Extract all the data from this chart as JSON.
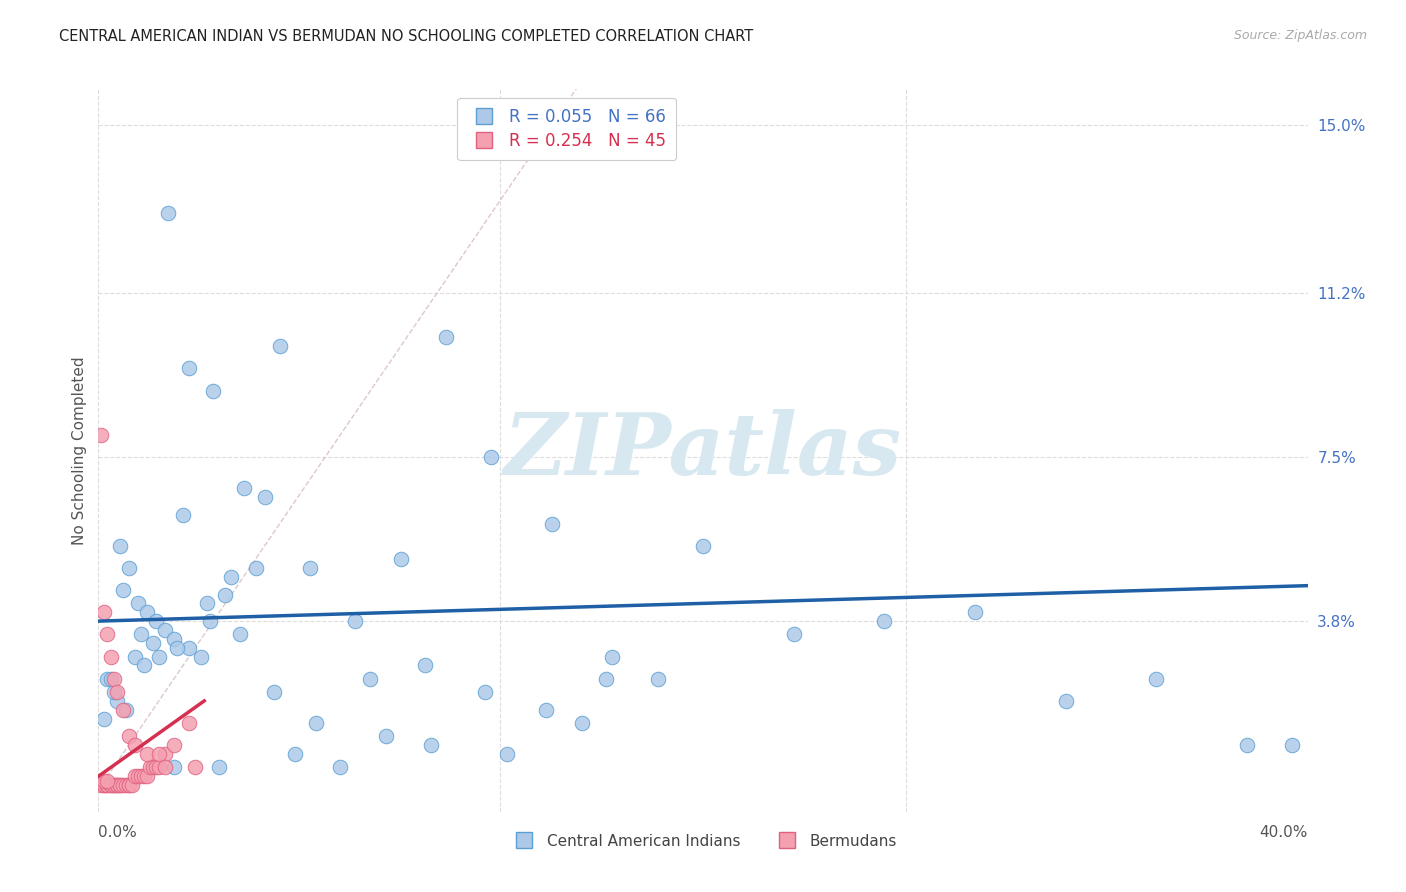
{
  "title": "CENTRAL AMERICAN INDIAN VS BERMUDAN NO SCHOOLING COMPLETED CORRELATION CHART",
  "source": "Source: ZipAtlas.com",
  "ylabel": "No Schooling Completed",
  "yticks_labels": [
    "15.0%",
    "11.2%",
    "7.5%",
    "3.8%"
  ],
  "ytick_vals": [
    0.15,
    0.112,
    0.075,
    0.038
  ],
  "xrange": [
    0.0,
    0.4
  ],
  "yrange": [
    -0.005,
    0.158
  ],
  "watermark_text": "ZIPatlas",
  "legend1_label": "Central American Indians",
  "legend2_label": "Bermudans",
  "R1": "R = 0.055",
  "N1": "N = 66",
  "R2": "R = 0.254",
  "N2": "N = 45",
  "color_blue_face": "#aec9e8",
  "color_blue_edge": "#5a9fd4",
  "color_pink_face": "#f4a0b0",
  "color_pink_edge": "#e06080",
  "trend_blue_color": "#1f5fa6",
  "trend_pink_color": "#d63050",
  "diag_color": "#d0b0b0",
  "grid_color": "#dddddd",
  "legend_blue_text": "#4472c4",
  "legend_pink_text": "#d63050",
  "blue_x": [
    0.023,
    0.03,
    0.038,
    0.048,
    0.06,
    0.007,
    0.01,
    0.013,
    0.016,
    0.019,
    0.022,
    0.025,
    0.03,
    0.036,
    0.044,
    0.052,
    0.003,
    0.006,
    0.009,
    0.012,
    0.018,
    0.026,
    0.034,
    0.042,
    0.055,
    0.07,
    0.085,
    0.1,
    0.115,
    0.13,
    0.15,
    0.17,
    0.2,
    0.23,
    0.26,
    0.29,
    0.32,
    0.35,
    0.38,
    0.395,
    0.005,
    0.008,
    0.014,
    0.02,
    0.028,
    0.037,
    0.047,
    0.058,
    0.072,
    0.09,
    0.108,
    0.128,
    0.148,
    0.168,
    0.002,
    0.004,
    0.015,
    0.025,
    0.04,
    0.065,
    0.08,
    0.095,
    0.11,
    0.135,
    0.16,
    0.185
  ],
  "blue_y": [
    0.13,
    0.095,
    0.09,
    0.068,
    0.1,
    0.055,
    0.05,
    0.042,
    0.04,
    0.038,
    0.036,
    0.034,
    0.032,
    0.042,
    0.048,
    0.05,
    0.025,
    0.02,
    0.018,
    0.03,
    0.033,
    0.032,
    0.03,
    0.044,
    0.066,
    0.05,
    0.038,
    0.052,
    0.102,
    0.075,
    0.06,
    0.03,
    0.055,
    0.035,
    0.038,
    0.04,
    0.02,
    0.025,
    0.01,
    0.01,
    0.022,
    0.045,
    0.035,
    0.03,
    0.062,
    0.038,
    0.035,
    0.022,
    0.015,
    0.025,
    0.028,
    0.022,
    0.018,
    0.025,
    0.016,
    0.025,
    0.028,
    0.005,
    0.005,
    0.008,
    0.005,
    0.012,
    0.01,
    0.008,
    0.015,
    0.025
  ],
  "pink_x": [
    0.001,
    0.002,
    0.002,
    0.003,
    0.003,
    0.004,
    0.004,
    0.005,
    0.005,
    0.006,
    0.006,
    0.007,
    0.007,
    0.008,
    0.009,
    0.01,
    0.01,
    0.011,
    0.012,
    0.013,
    0.014,
    0.015,
    0.016,
    0.017,
    0.018,
    0.019,
    0.02,
    0.022,
    0.025,
    0.03,
    0.001,
    0.002,
    0.003,
    0.004,
    0.005,
    0.006,
    0.008,
    0.01,
    0.012,
    0.016,
    0.02,
    0.002,
    0.003,
    0.022,
    0.032
  ],
  "pink_y": [
    0.001,
    0.001,
    0.001,
    0.001,
    0.001,
    0.001,
    0.001,
    0.001,
    0.001,
    0.001,
    0.001,
    0.001,
    0.001,
    0.001,
    0.001,
    0.001,
    0.001,
    0.001,
    0.003,
    0.003,
    0.003,
    0.003,
    0.003,
    0.005,
    0.005,
    0.005,
    0.005,
    0.008,
    0.01,
    0.015,
    0.08,
    0.04,
    0.035,
    0.03,
    0.025,
    0.022,
    0.018,
    0.012,
    0.01,
    0.008,
    0.008,
    0.002,
    0.002,
    0.005,
    0.005
  ],
  "blue_trend_x0": 0.0,
  "blue_trend_x1": 0.4,
  "blue_trend_y0": 0.038,
  "blue_trend_y1": 0.046,
  "pink_trend_x0": 0.0,
  "pink_trend_x1": 0.035,
  "pink_trend_y0": 0.003,
  "pink_trend_y1": 0.02
}
